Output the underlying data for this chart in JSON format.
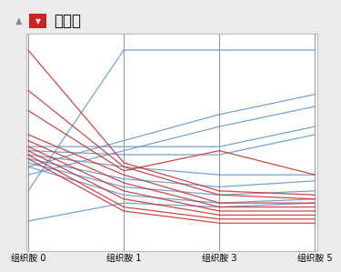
{
  "title": "平行图",
  "axes_labels": [
    "组织胺 0",
    "组织胺 1",
    "组织胺 3",
    "组织胺 5"
  ],
  "background_color": "#ebebeb",
  "plot_background": "#ffffff",
  "blue_lines": [
    [
      0.3,
      1.0,
      1.0,
      1.0
    ],
    [
      0.42,
      0.55,
      0.68,
      0.78
    ],
    [
      0.38,
      0.5,
      0.62,
      0.72
    ],
    [
      0.52,
      0.52,
      0.52,
      0.62
    ],
    [
      0.5,
      0.48,
      0.48,
      0.58
    ],
    [
      0.48,
      0.42,
      0.38,
      0.38
    ],
    [
      0.46,
      0.36,
      0.32,
      0.35
    ],
    [
      0.44,
      0.32,
      0.28,
      0.3
    ],
    [
      0.42,
      0.28,
      0.24,
      0.26
    ],
    [
      0.15,
      0.24,
      0.22,
      0.24
    ]
  ],
  "red_lines": [
    [
      1.0,
      0.44,
      0.3,
      0.28
    ],
    [
      0.8,
      0.42,
      0.28,
      0.26
    ],
    [
      0.7,
      0.4,
      0.5,
      0.38
    ],
    [
      0.58,
      0.38,
      0.24,
      0.24
    ],
    [
      0.55,
      0.34,
      0.22,
      0.22
    ],
    [
      0.52,
      0.3,
      0.2,
      0.2
    ],
    [
      0.5,
      0.26,
      0.18,
      0.18
    ],
    [
      0.48,
      0.22,
      0.16,
      0.16
    ],
    [
      0.46,
      0.2,
      0.14,
      0.14
    ]
  ],
  "blue_color": "#6699cc",
  "red_color": "#cc3333",
  "header_bg": "#e8e8e8",
  "header_border": "#cccccc",
  "plot_border": "#bbbbbb",
  "axis_line_color": "#999999",
  "tick_fontsize": 7,
  "title_fontsize": 12
}
